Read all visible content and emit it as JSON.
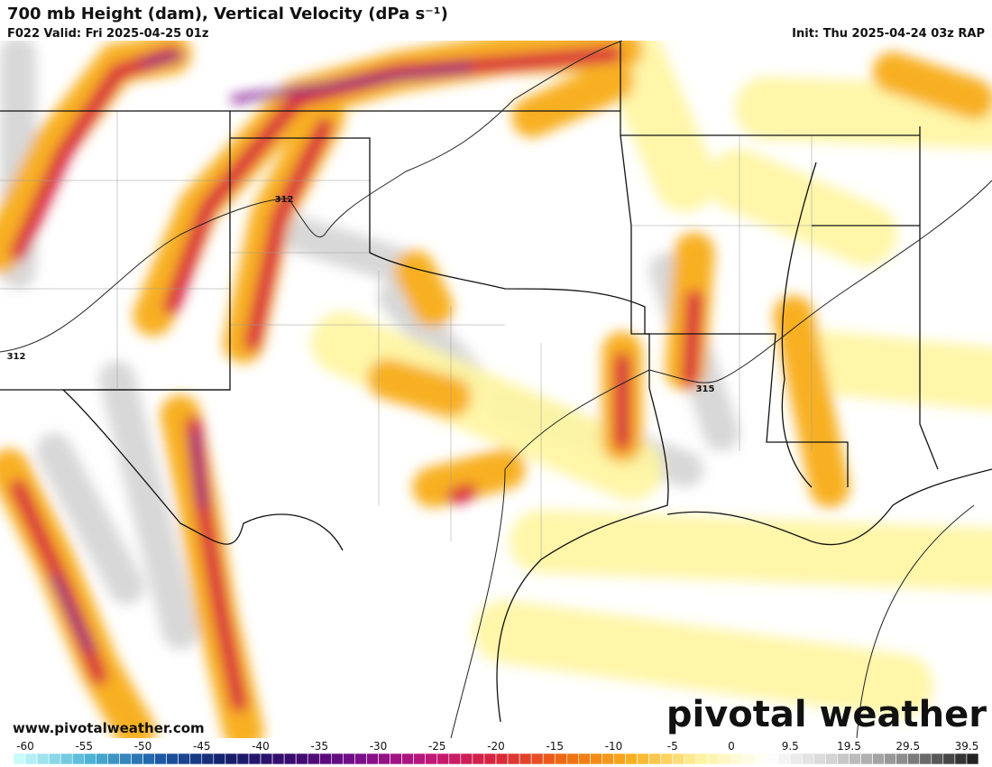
{
  "header": {
    "title": "700 mb Height (dam), Vertical Velocity (dPa s⁻¹)",
    "valid": "F022 Valid: Fri 2025-04-25 01z",
    "init": "Init: Thu 2025-04-24 03z RAP"
  },
  "map": {
    "contour_labels": [
      "312",
      "312",
      "315"
    ]
  },
  "footer": {
    "website": "www.pivotalweather.com",
    "logo": "pivotal weather"
  },
  "colorbar": {
    "ticks": [
      -60,
      -55,
      -50,
      -45,
      -40,
      -35,
      -30,
      -25,
      -20,
      -15,
      -10,
      -5,
      0,
      9.5,
      19.5,
      29.5,
      39.5
    ],
    "colors": [
      "#c8fbfb",
      "#4fb6d6",
      "#1f5fa8",
      "#12206b",
      "#3a0a6e",
      "#7a0f8c",
      "#c0177a",
      "#d8243c",
      "#f06a10",
      "#f8b020",
      "#fff3a0",
      "#ffffff",
      "#cfcfcf",
      "#8a8a8a",
      "#222222"
    ]
  }
}
